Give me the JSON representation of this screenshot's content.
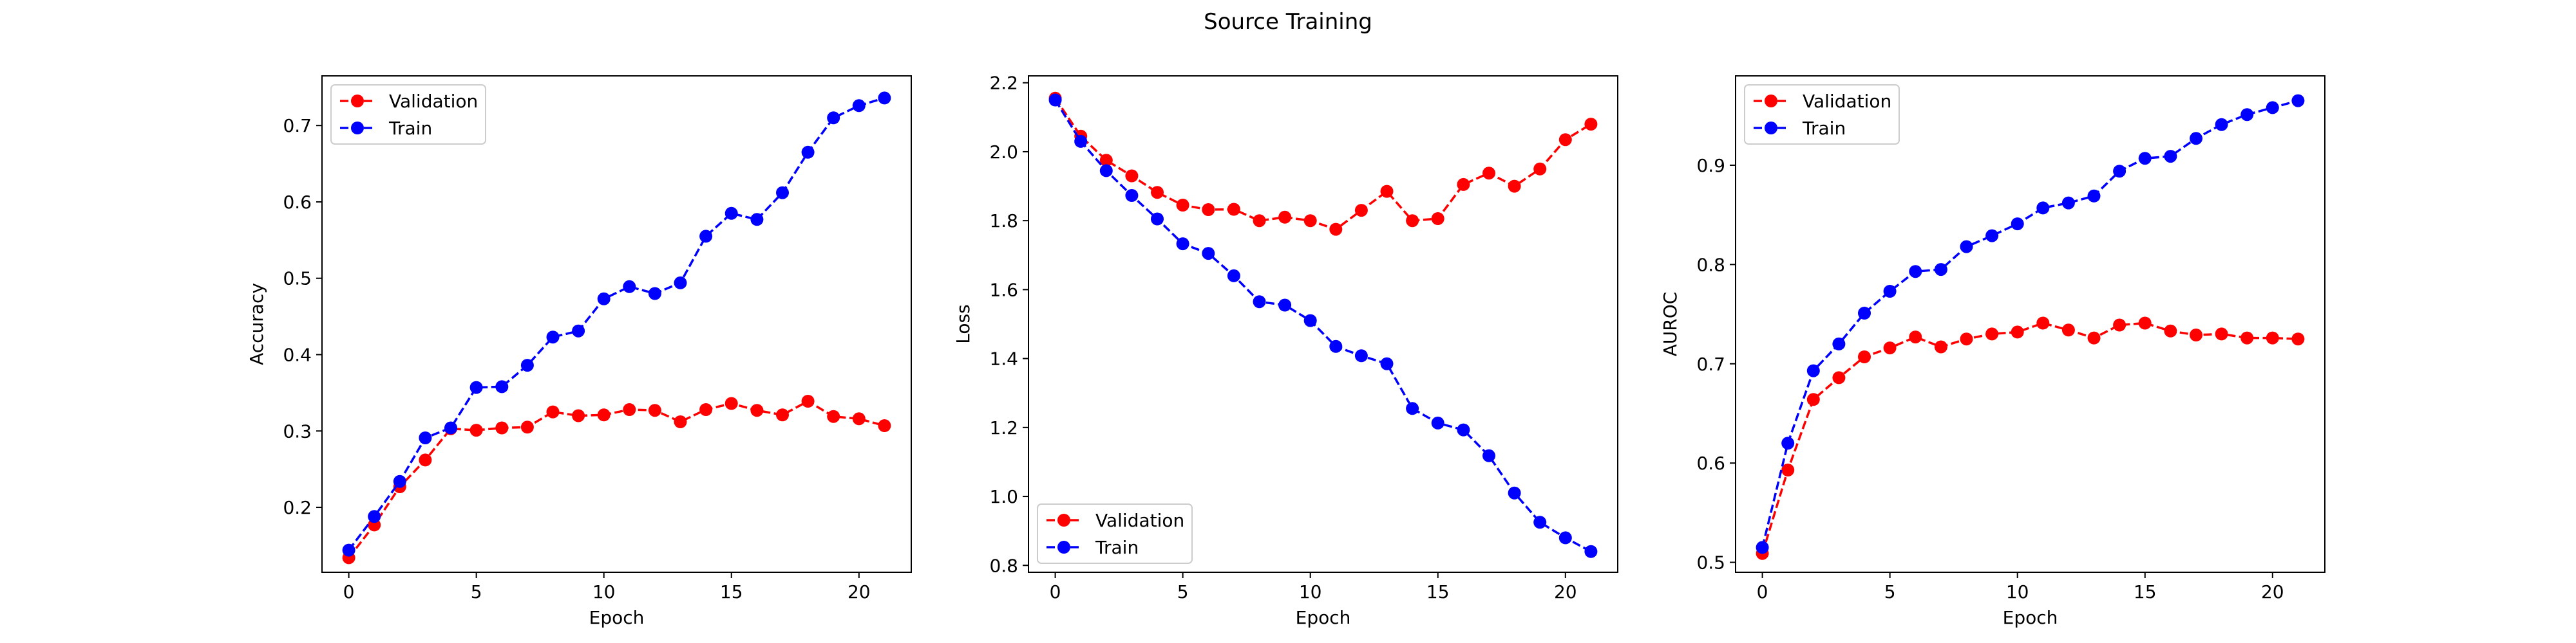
{
  "figure": {
    "title": "Source Training"
  },
  "colors": {
    "Validation": "#ff0000",
    "Train": "#0000ff"
  },
  "chart_data": [
    {
      "type": "line",
      "title": "",
      "xlabel": "Epoch",
      "ylabel": "Accuracy",
      "xlim": [
        -1.05,
        22.05
      ],
      "ylim": [
        0.115,
        0.765
      ],
      "xticks": [
        0,
        5,
        10,
        15,
        20
      ],
      "yticks": [
        0.2,
        0.3,
        0.4,
        0.5,
        0.6,
        0.7
      ],
      "grid": false,
      "legend_position": "upper-left",
      "x": [
        0,
        1,
        2,
        3,
        4,
        5,
        6,
        7,
        8,
        9,
        10,
        11,
        12,
        13,
        14,
        15,
        16,
        17,
        18,
        19,
        20,
        21
      ],
      "series": [
        {
          "name": "Validation",
          "values": [
            0.134,
            0.177,
            0.227,
            0.262,
            0.303,
            0.301,
            0.304,
            0.305,
            0.325,
            0.32,
            0.321,
            0.328,
            0.327,
            0.312,
            0.328,
            0.336,
            0.327,
            0.321,
            0.339,
            0.319,
            0.316,
            0.307
          ]
        },
        {
          "name": "Train",
          "values": [
            0.144,
            0.188,
            0.234,
            0.291,
            0.304,
            0.357,
            0.358,
            0.386,
            0.423,
            0.431,
            0.473,
            0.489,
            0.48,
            0.494,
            0.555,
            0.585,
            0.577,
            0.612,
            0.665,
            0.71,
            0.726,
            0.736
          ]
        }
      ]
    },
    {
      "type": "line",
      "title": "",
      "xlabel": "Epoch",
      "ylabel": "Loss",
      "xlim": [
        -1.05,
        22.05
      ],
      "ylim": [
        0.78,
        2.22
      ],
      "xticks": [
        0,
        5,
        10,
        15,
        20
      ],
      "yticks": [
        0.8,
        1.0,
        1.2,
        1.4,
        1.6,
        1.8,
        2.0,
        2.2
      ],
      "grid": false,
      "legend_position": "lower-left",
      "x": [
        0,
        1,
        2,
        3,
        4,
        5,
        6,
        7,
        8,
        9,
        10,
        11,
        12,
        13,
        14,
        15,
        16,
        17,
        18,
        19,
        20,
        21
      ],
      "series": [
        {
          "name": "Validation",
          "values": [
            2.155,
            2.045,
            1.975,
            1.93,
            1.882,
            1.845,
            1.832,
            1.833,
            1.8,
            1.81,
            1.8,
            1.775,
            1.83,
            1.885,
            1.8,
            1.806,
            1.905,
            1.938,
            1.9,
            1.95,
            2.035,
            2.08
          ]
        },
        {
          "name": "Train",
          "values": [
            2.15,
            2.03,
            1.945,
            1.873,
            1.805,
            1.733,
            1.705,
            1.64,
            1.565,
            1.555,
            1.51,
            1.435,
            1.408,
            1.385,
            1.255,
            1.213,
            1.193,
            1.118,
            1.01,
            0.925,
            0.88,
            0.84
          ]
        }
      ]
    },
    {
      "type": "line",
      "title": "",
      "xlabel": "Epoch",
      "ylabel": "AUROC",
      "xlim": [
        -1.05,
        22.05
      ],
      "ylim": [
        0.49,
        0.99
      ],
      "xticks": [
        0,
        5,
        10,
        15,
        20
      ],
      "yticks": [
        0.5,
        0.6,
        0.7,
        0.8,
        0.9
      ],
      "grid": false,
      "legend_position": "upper-left",
      "x": [
        0,
        1,
        2,
        3,
        4,
        5,
        6,
        7,
        8,
        9,
        10,
        11,
        12,
        13,
        14,
        15,
        16,
        17,
        18,
        19,
        20,
        21
      ],
      "series": [
        {
          "name": "Validation",
          "values": [
            0.509,
            0.593,
            0.664,
            0.686,
            0.707,
            0.716,
            0.727,
            0.717,
            0.725,
            0.73,
            0.732,
            0.741,
            0.734,
            0.726,
            0.739,
            0.741,
            0.733,
            0.729,
            0.73,
            0.726,
            0.726,
            0.725
          ]
        },
        {
          "name": "Train",
          "values": [
            0.515,
            0.62,
            0.693,
            0.72,
            0.751,
            0.773,
            0.793,
            0.795,
            0.818,
            0.829,
            0.841,
            0.857,
            0.862,
            0.869,
            0.894,
            0.907,
            0.909,
            0.927,
            0.941,
            0.951,
            0.958,
            0.965
          ]
        }
      ]
    }
  ]
}
